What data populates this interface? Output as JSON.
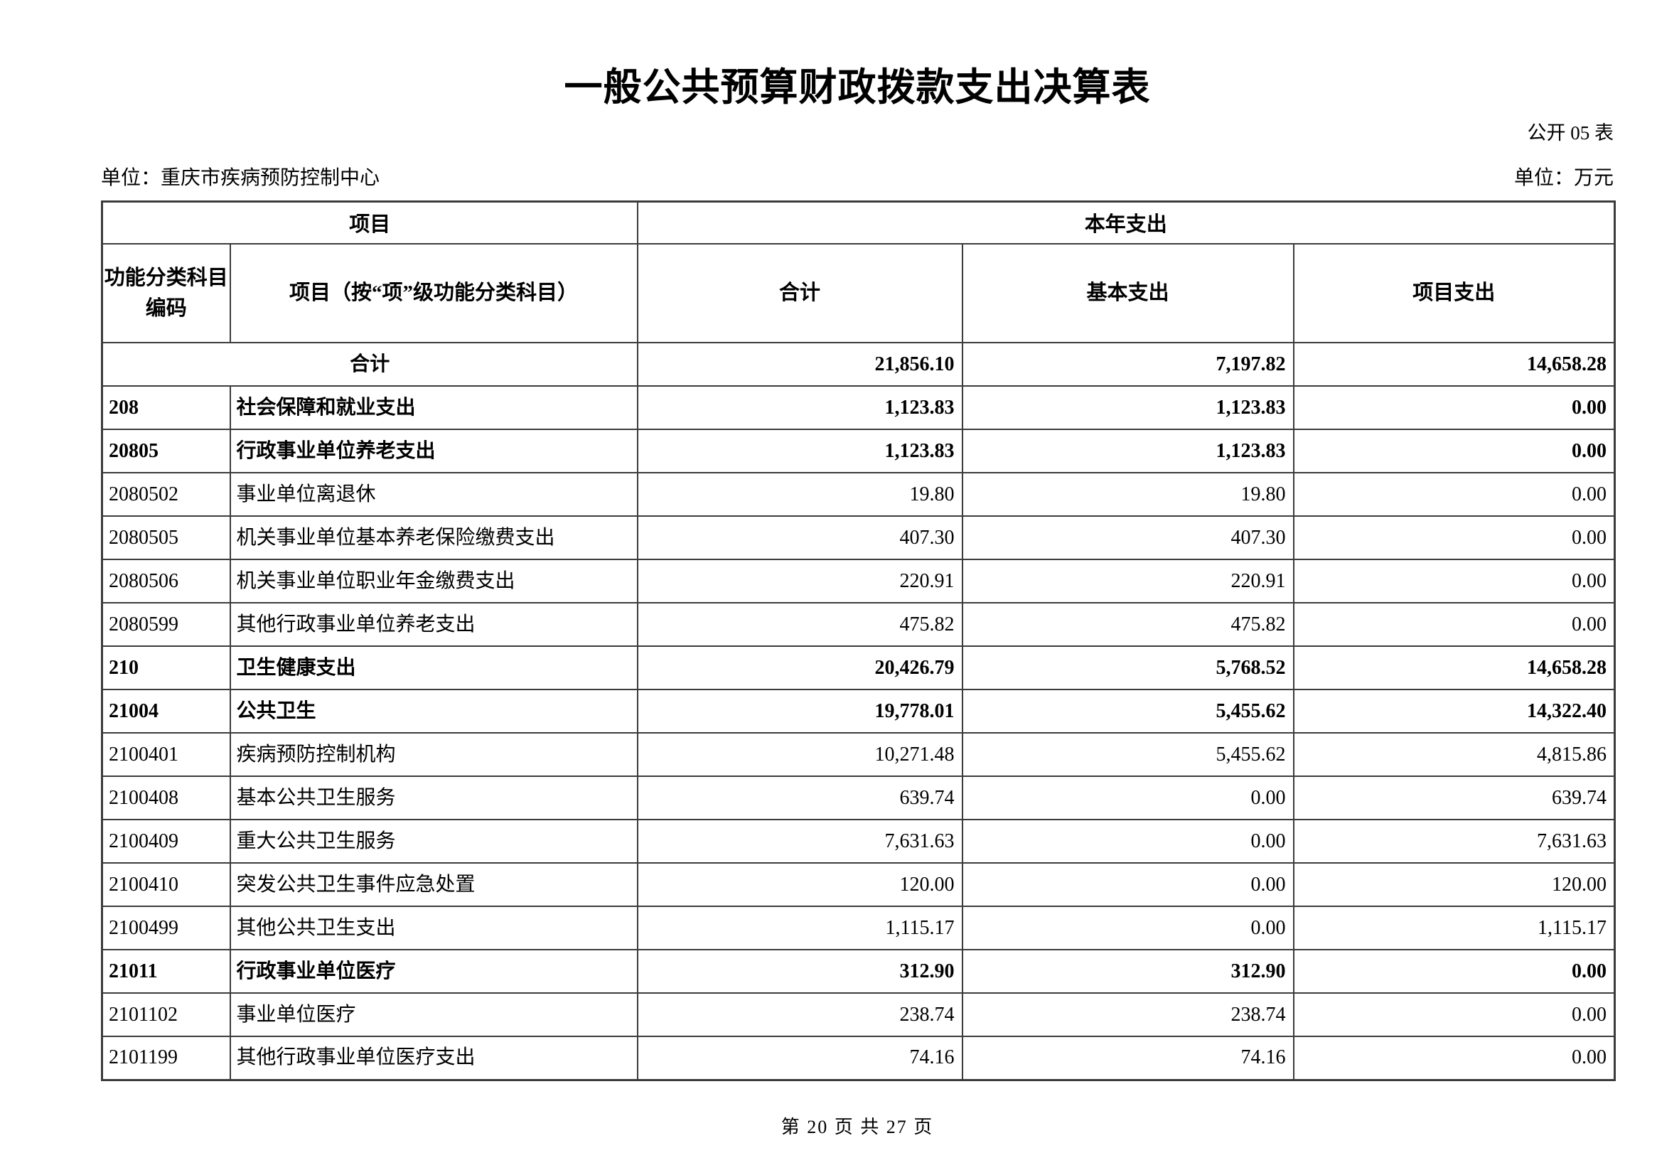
{
  "page": {
    "title": "一般公共预算财政拨款支出决算表",
    "form_number": "公开 05 表",
    "unit_name": "单位：重庆市疾病预防控制中心",
    "unit_measure": "单位：万元",
    "footer": "第 20 页 共 27 页"
  },
  "colors": {
    "background": "#ffffff",
    "text": "#000000",
    "border": "#3b3b3b"
  },
  "table": {
    "header": {
      "group_project": "项目",
      "group_current_year": "本年支出",
      "col_code_line1": "功能分类科目",
      "col_code_line2": "编码",
      "col_name": "项目（按“项”级功能分类科目）",
      "col_total": "合计",
      "col_basic": "基本支出",
      "col_project": "项目支出"
    },
    "rows": [
      {
        "code": "",
        "name": "合计",
        "total": "21,856.10",
        "basic": "7,197.82",
        "project": "14,658.28",
        "bold": true,
        "merged": true
      },
      {
        "code": "208",
        "name": "社会保障和就业支出",
        "total": "1,123.83",
        "basic": "1,123.83",
        "project": "0.00",
        "bold": true,
        "merged": false
      },
      {
        "code": "20805",
        "name": "行政事业单位养老支出",
        "total": "1,123.83",
        "basic": "1,123.83",
        "project": "0.00",
        "bold": true,
        "merged": false
      },
      {
        "code": "2080502",
        "name": "事业单位离退休",
        "total": "19.80",
        "basic": "19.80",
        "project": "0.00",
        "bold": false,
        "merged": false
      },
      {
        "code": "2080505",
        "name": "机关事业单位基本养老保险缴费支出",
        "total": "407.30",
        "basic": "407.30",
        "project": "0.00",
        "bold": false,
        "merged": false
      },
      {
        "code": "2080506",
        "name": "机关事业单位职业年金缴费支出",
        "total": "220.91",
        "basic": "220.91",
        "project": "0.00",
        "bold": false,
        "merged": false
      },
      {
        "code": "2080599",
        "name": "其他行政事业单位养老支出",
        "total": "475.82",
        "basic": "475.82",
        "project": "0.00",
        "bold": false,
        "merged": false
      },
      {
        "code": "210",
        "name": "卫生健康支出",
        "total": "20,426.79",
        "basic": "5,768.52",
        "project": "14,658.28",
        "bold": true,
        "merged": false
      },
      {
        "code": "21004",
        "name": "公共卫生",
        "total": "19,778.01",
        "basic": "5,455.62",
        "project": "14,322.40",
        "bold": true,
        "merged": false
      },
      {
        "code": "2100401",
        "name": "疾病预防控制机构",
        "total": "10,271.48",
        "basic": "5,455.62",
        "project": "4,815.86",
        "bold": false,
        "merged": false
      },
      {
        "code": "2100408",
        "name": "基本公共卫生服务",
        "total": "639.74",
        "basic": "0.00",
        "project": "639.74",
        "bold": false,
        "merged": false
      },
      {
        "code": "2100409",
        "name": "重大公共卫生服务",
        "total": "7,631.63",
        "basic": "0.00",
        "project": "7,631.63",
        "bold": false,
        "merged": false
      },
      {
        "code": "2100410",
        "name": "突发公共卫生事件应急处置",
        "total": "120.00",
        "basic": "0.00",
        "project": "120.00",
        "bold": false,
        "merged": false
      },
      {
        "code": "2100499",
        "name": "其他公共卫生支出",
        "total": "1,115.17",
        "basic": "0.00",
        "project": "1,115.17",
        "bold": false,
        "merged": false
      },
      {
        "code": "21011",
        "name": "行政事业单位医疗",
        "total": "312.90",
        "basic": "312.90",
        "project": "0.00",
        "bold": true,
        "merged": false
      },
      {
        "code": "2101102",
        "name": "事业单位医疗",
        "total": "238.74",
        "basic": "238.74",
        "project": "0.00",
        "bold": false,
        "merged": false
      },
      {
        "code": "2101199",
        "name": "其他行政事业单位医疗支出",
        "total": "74.16",
        "basic": "74.16",
        "project": "0.00",
        "bold": false,
        "merged": false
      }
    ]
  }
}
